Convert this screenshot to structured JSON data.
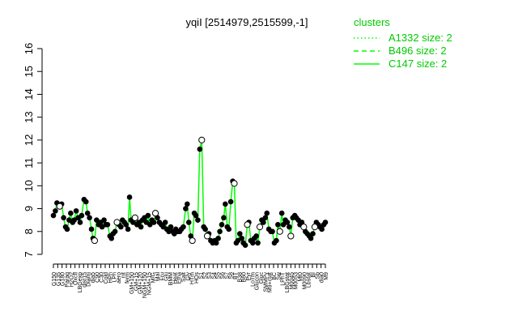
{
  "chart_data": {
    "type": "line",
    "title": "yqiI [2514979,2515599,-1]",
    "xlabel": "",
    "ylabel": "",
    "ylim": [
      7,
      16
    ],
    "yticks": [
      7,
      8,
      9,
      10,
      11,
      12,
      13,
      14,
      15,
      16
    ],
    "grid": false,
    "legend_placement": "top-right",
    "legend": {
      "title": "clusters",
      "entries": [
        {
          "label": "A1332 size: 2",
          "style": "dotted"
        },
        {
          "label": "B496 size: 2",
          "style": "dashed"
        },
        {
          "label": "C147 size: 2",
          "style": "solid"
        }
      ]
    },
    "series_color": "#00ff00",
    "xtick_labels": [
      "G150",
      "G135",
      "G180",
      "Paraq",
      "H2O2",
      "Oxctl",
      "LBGexp",
      "dist15",
      "Diami",
      "dia5",
      "C90",
      "C30",
      "Cold",
      "HPh",
      "LPh",
      "aero",
      "nit",
      "ferm",
      "GM+150",
      "GM+15",
      "GM+120",
      "NGM+150",
      "NGM+15",
      "M/G",
      "Mal",
      "Fru",
      "Glu",
      "BMM",
      "Heat",
      "Etha",
      "Salt",
      "Gly",
      "HTm",
      "HOs",
      "S1",
      "S2",
      "S3",
      "S4",
      "S5",
      "S6",
      "S7",
      "S8",
      "BT",
      "B38",
      "B60",
      "Pyr",
      "LoTm",
      "Glucon",
      "Gluc",
      "SMMPy",
      "M9+ctat",
      "BC",
      "Sw",
      "LPhT",
      "LBGstat",
      "M0045",
      "M0053",
      "Mt0",
      "M0090",
      "Lbstat",
      "BI",
      "Sb",
      "dia0",
      "M9"
    ],
    "points": [
      [
        0.0,
        8.7
      ],
      [
        0.5,
        8.9
      ],
      [
        0.9,
        9.25
      ],
      [
        1.6,
        9.1
      ],
      [
        2.1,
        9.2
      ],
      [
        2.6,
        8.6
      ],
      [
        3.1,
        8.2
      ],
      [
        3.5,
        8.1
      ],
      [
        4.0,
        8.5
      ],
      [
        4.4,
        8.8
      ],
      [
        4.9,
        8.4
      ],
      [
        5.3,
        8.5
      ],
      [
        5.8,
        8.9
      ],
      [
        6.3,
        8.6
      ],
      [
        6.8,
        8.4
      ],
      [
        7.2,
        8.7
      ],
      [
        7.8,
        9.4
      ],
      [
        8.3,
        9.3
      ],
      [
        8.7,
        8.8
      ],
      [
        9.2,
        8.6
      ],
      [
        9.7,
        8.1
      ],
      [
        10.1,
        7.7
      ],
      [
        10.5,
        7.6
      ],
      [
        11.0,
        8.5
      ],
      [
        11.5,
        8.3
      ],
      [
        12.0,
        8.4
      ],
      [
        12.4,
        8.2
      ],
      [
        12.9,
        8.5
      ],
      [
        13.4,
        8.3
      ],
      [
        13.8,
        8.3
      ],
      [
        14.4,
        7.8
      ],
      [
        14.8,
        7.7
      ],
      [
        15.2,
        7.9
      ],
      [
        15.7,
        8.0
      ],
      [
        16.2,
        8.4
      ],
      [
        16.7,
        8.3
      ],
      [
        17.2,
        8.2
      ],
      [
        17.6,
        8.5
      ],
      [
        18.1,
        8.4
      ],
      [
        18.5,
        8.3
      ],
      [
        19.0,
        8.1
      ],
      [
        19.4,
        9.5
      ],
      [
        19.8,
        8.5
      ],
      [
        20.3,
        8.4
      ],
      [
        20.8,
        8.6
      ],
      [
        21.3,
        8.3
      ],
      [
        21.8,
        8.4
      ],
      [
        22.3,
        8.2
      ],
      [
        22.7,
        8.5
      ],
      [
        23.2,
        8.6
      ],
      [
        23.7,
        8.4
      ],
      [
        24.1,
        8.7
      ],
      [
        24.6,
        8.3
      ],
      [
        25.1,
        8.5
      ],
      [
        25.6,
        8.4
      ],
      [
        26.0,
        8.8
      ],
      [
        26.5,
        8.6
      ],
      [
        27.0,
        8.4
      ],
      [
        27.5,
        8.3
      ],
      [
        28.0,
        8.2
      ],
      [
        28.5,
        8.4
      ],
      [
        28.9,
        8.1
      ],
      [
        29.4,
        8.0
      ],
      [
        29.9,
        8.2
      ],
      [
        30.4,
        8.0
      ],
      [
        30.8,
        7.9
      ],
      [
        31.2,
        8.1
      ],
      [
        31.7,
        8.0
      ],
      [
        32.2,
        8.0
      ],
      [
        32.6,
        8.1
      ],
      [
        33.1,
        8.2
      ],
      [
        33.7,
        9.0
      ],
      [
        34.1,
        9.2
      ],
      [
        34.5,
        8.4
      ],
      [
        35.0,
        7.8
      ],
      [
        35.4,
        7.6
      ],
      [
        35.9,
        8.8
      ],
      [
        36.3,
        8.7
      ],
      [
        36.8,
        8.5
      ],
      [
        37.3,
        11.6
      ],
      [
        37.8,
        12.0
      ],
      [
        38.3,
        8.2
      ],
      [
        38.7,
        8.1
      ],
      [
        39.2,
        7.8
      ],
      [
        39.6,
        7.9
      ],
      [
        40.1,
        7.6
      ],
      [
        40.6,
        7.5
      ],
      [
        41.1,
        7.6
      ],
      [
        41.5,
        7.5
      ],
      [
        42.0,
        7.7
      ],
      [
        42.4,
        8.0
      ],
      [
        42.9,
        8.3
      ],
      [
        43.4,
        8.6
      ],
      [
        43.8,
        9.2
      ],
      [
        44.3,
        8.2
      ],
      [
        44.7,
        8.1
      ],
      [
        45.2,
        9.3
      ],
      [
        45.7,
        10.2
      ],
      [
        46.1,
        10.1
      ],
      [
        46.6,
        7.5
      ],
      [
        47.0,
        7.6
      ],
      [
        47.5,
        7.9
      ],
      [
        48.0,
        7.7
      ],
      [
        48.4,
        7.5
      ],
      [
        48.9,
        7.4
      ],
      [
        49.4,
        8.3
      ],
      [
        49.8,
        8.4
      ],
      [
        50.3,
        7.6
      ],
      [
        50.8,
        7.5
      ],
      [
        51.2,
        7.7
      ],
      [
        51.7,
        7.8
      ],
      [
        52.1,
        7.5
      ],
      [
        52.6,
        8.2
      ],
      [
        53.1,
        8.5
      ],
      [
        53.5,
        8.4
      ],
      [
        54.0,
        8.6
      ],
      [
        54.4,
        8.8
      ],
      [
        54.9,
        8.1
      ],
      [
        55.4,
        8.0
      ],
      [
        55.8,
        8.0
      ],
      [
        56.3,
        7.5
      ],
      [
        56.8,
        7.6
      ],
      [
        57.2,
        8.3
      ],
      [
        57.7,
        8.0
      ],
      [
        58.2,
        8.8
      ],
      [
        58.6,
        8.3
      ],
      [
        59.1,
        8.5
      ],
      [
        59.6,
        8.4
      ],
      [
        60.1,
        8.2
      ],
      [
        60.5,
        7.8
      ],
      [
        61.0,
        8.6
      ],
      [
        61.5,
        8.7
      ],
      [
        61.9,
        8.6
      ],
      [
        62.4,
        8.5
      ],
      [
        62.8,
        8.3
      ],
      [
        63.3,
        8.4
      ],
      [
        63.8,
        8.2
      ],
      [
        64.2,
        8.0
      ],
      [
        64.7,
        7.9
      ],
      [
        65.2,
        7.8
      ],
      [
        65.6,
        7.7
      ],
      [
        66.1,
        7.9
      ],
      [
        66.6,
        8.2
      ],
      [
        67.0,
        8.4
      ],
      [
        67.5,
        8.3
      ],
      [
        67.9,
        8.2
      ],
      [
        68.4,
        8.1
      ],
      [
        68.9,
        8.3
      ],
      [
        69.3,
        8.4
      ]
    ],
    "hollow_points": [
      [
        1.6,
        9.1
      ],
      [
        10.5,
        7.6
      ],
      [
        16.2,
        8.4
      ],
      [
        20.8,
        8.6
      ],
      [
        26.0,
        8.8
      ],
      [
        35.4,
        7.6
      ],
      [
        37.8,
        12.0
      ],
      [
        39.2,
        7.8
      ],
      [
        46.1,
        10.1
      ],
      [
        49.4,
        8.3
      ],
      [
        52.6,
        8.2
      ],
      [
        57.7,
        8.0
      ],
      [
        60.5,
        7.8
      ],
      [
        63.8,
        8.2
      ],
      [
        66.6,
        8.2
      ]
    ]
  }
}
